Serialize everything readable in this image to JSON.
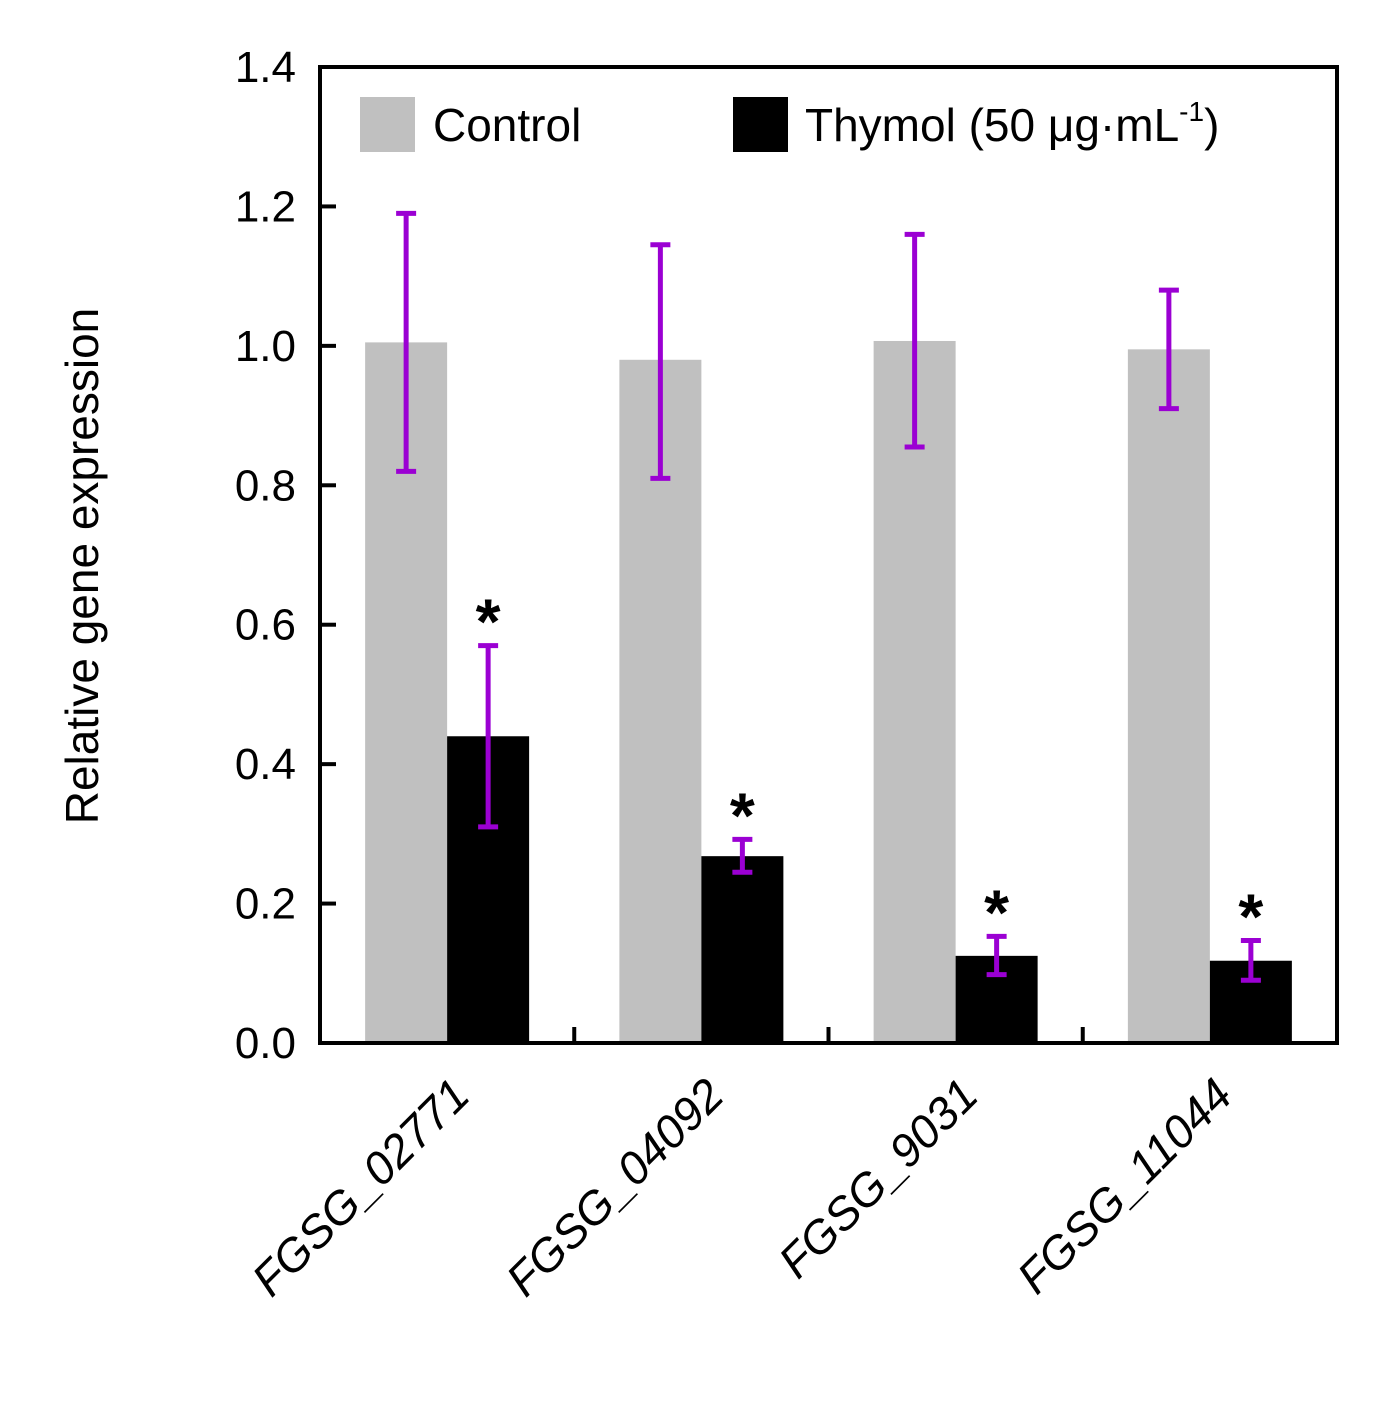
{
  "chart_data": {
    "type": "bar",
    "title": "",
    "xlabel": "",
    "ylabel": "Relative gene expression",
    "ylim": [
      0,
      1.4
    ],
    "yticks": [
      "0.0",
      "0.2",
      "0.4",
      "0.6",
      "0.8",
      "1.0",
      "1.2",
      "1.4"
    ],
    "categories": [
      "FGSG_02771",
      "FGSG_04092",
      "FGSG_9031",
      "FGSG_11044"
    ],
    "series": [
      {
        "name": "Control",
        "color": "#c0c0c0",
        "values": [
          1.005,
          0.98,
          1.007,
          0.995
        ],
        "error_upper": [
          1.19,
          1.145,
          1.16,
          1.08
        ],
        "error_lower": [
          0.82,
          0.81,
          0.855,
          0.91
        ]
      },
      {
        "name": "Thymol (50 μg·mL⁻¹)",
        "color": "#000000",
        "values": [
          0.44,
          0.268,
          0.125,
          0.118
        ],
        "error_upper": [
          0.57,
          0.292,
          0.153,
          0.147
        ],
        "error_lower": [
          0.31,
          0.245,
          0.098,
          0.09
        ],
        "significance": [
          "*",
          "*",
          "*",
          "*"
        ]
      }
    ],
    "error_bar_color": "#9b00d3",
    "legend": {
      "position": "top",
      "entries": [
        "Control",
        "Thymol (50 μg·mL",
        "-1",
        ")"
      ]
    }
  }
}
